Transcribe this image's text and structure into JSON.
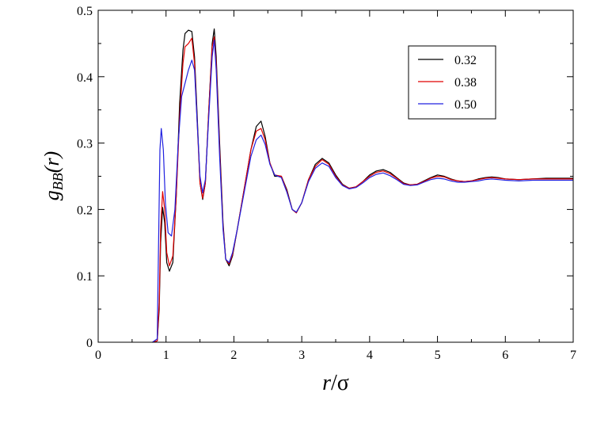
{
  "chart_data": {
    "type": "line",
    "xlabel": {
      "var": "r",
      "sep": "/",
      "unit": "σ"
    },
    "ylabel": {
      "var": "g",
      "sub": "BB",
      "arg": "(r)"
    },
    "xlim": [
      0,
      7
    ],
    "ylim": [
      0,
      0.5
    ],
    "xticks": [
      "0",
      "1",
      "2",
      "3",
      "4",
      "5",
      "6",
      "7"
    ],
    "yticks": [
      "0",
      "0.1",
      "0.2",
      "0.3",
      "0.4",
      "0.5"
    ],
    "grid": false,
    "legend_position": "top-right",
    "series": [
      {
        "name": "0.32",
        "color": "#000000",
        "points": [
          [
            0.8,
            0.0
          ],
          [
            0.87,
            0.002
          ],
          [
            0.9,
            0.05
          ],
          [
            0.92,
            0.15
          ],
          [
            0.95,
            0.203
          ],
          [
            0.98,
            0.18
          ],
          [
            1.01,
            0.12
          ],
          [
            1.05,
            0.107
          ],
          [
            1.1,
            0.12
          ],
          [
            1.15,
            0.22
          ],
          [
            1.2,
            0.36
          ],
          [
            1.25,
            0.44
          ],
          [
            1.28,
            0.465
          ],
          [
            1.33,
            0.47
          ],
          [
            1.38,
            0.468
          ],
          [
            1.42,
            0.43
          ],
          [
            1.46,
            0.34
          ],
          [
            1.5,
            0.24
          ],
          [
            1.54,
            0.215
          ],
          [
            1.58,
            0.24
          ],
          [
            1.63,
            0.35
          ],
          [
            1.68,
            0.45
          ],
          [
            1.71,
            0.472
          ],
          [
            1.74,
            0.43
          ],
          [
            1.79,
            0.3
          ],
          [
            1.84,
            0.18
          ],
          [
            1.88,
            0.125
          ],
          [
            1.93,
            0.115
          ],
          [
            1.98,
            0.13
          ],
          [
            2.05,
            0.17
          ],
          [
            2.15,
            0.23
          ],
          [
            2.25,
            0.29
          ],
          [
            2.33,
            0.325
          ],
          [
            2.4,
            0.333
          ],
          [
            2.46,
            0.31
          ],
          [
            2.53,
            0.27
          ],
          [
            2.6,
            0.25
          ],
          [
            2.7,
            0.25
          ],
          [
            2.78,
            0.23
          ],
          [
            2.86,
            0.2
          ],
          [
            2.92,
            0.195
          ],
          [
            3.0,
            0.21
          ],
          [
            3.1,
            0.245
          ],
          [
            3.2,
            0.268
          ],
          [
            3.3,
            0.277
          ],
          [
            3.4,
            0.27
          ],
          [
            3.5,
            0.252
          ],
          [
            3.6,
            0.238
          ],
          [
            3.7,
            0.232
          ],
          [
            3.8,
            0.234
          ],
          [
            3.9,
            0.242
          ],
          [
            4.0,
            0.252
          ],
          [
            4.1,
            0.258
          ],
          [
            4.2,
            0.26
          ],
          [
            4.3,
            0.256
          ],
          [
            4.4,
            0.248
          ],
          [
            4.5,
            0.24
          ],
          [
            4.6,
            0.237
          ],
          [
            4.7,
            0.238
          ],
          [
            4.8,
            0.243
          ],
          [
            4.9,
            0.248
          ],
          [
            5.0,
            0.252
          ],
          [
            5.1,
            0.25
          ],
          [
            5.2,
            0.246
          ],
          [
            5.3,
            0.243
          ],
          [
            5.4,
            0.242
          ],
          [
            5.5,
            0.243
          ],
          [
            5.6,
            0.246
          ],
          [
            5.7,
            0.248
          ],
          [
            5.8,
            0.249
          ],
          [
            5.9,
            0.248
          ],
          [
            6.0,
            0.246
          ],
          [
            6.2,
            0.245
          ],
          [
            6.4,
            0.246
          ],
          [
            6.6,
            0.247
          ],
          [
            6.8,
            0.247
          ],
          [
            7.0,
            0.247
          ]
        ]
      },
      {
        "name": "0.38",
        "color": "#e00000",
        "points": [
          [
            0.8,
            0.0
          ],
          [
            0.87,
            0.002
          ],
          [
            0.9,
            0.06
          ],
          [
            0.92,
            0.17
          ],
          [
            0.95,
            0.227
          ],
          [
            0.98,
            0.2
          ],
          [
            1.01,
            0.135
          ],
          [
            1.05,
            0.115
          ],
          [
            1.1,
            0.13
          ],
          [
            1.15,
            0.22
          ],
          [
            1.2,
            0.34
          ],
          [
            1.25,
            0.42
          ],
          [
            1.28,
            0.445
          ],
          [
            1.33,
            0.45
          ],
          [
            1.38,
            0.458
          ],
          [
            1.42,
            0.42
          ],
          [
            1.46,
            0.33
          ],
          [
            1.5,
            0.24
          ],
          [
            1.54,
            0.217
          ],
          [
            1.58,
            0.24
          ],
          [
            1.63,
            0.35
          ],
          [
            1.68,
            0.445
          ],
          [
            1.71,
            0.46
          ],
          [
            1.74,
            0.42
          ],
          [
            1.79,
            0.29
          ],
          [
            1.84,
            0.175
          ],
          [
            1.88,
            0.125
          ],
          [
            1.93,
            0.118
          ],
          [
            1.98,
            0.132
          ],
          [
            2.05,
            0.17
          ],
          [
            2.15,
            0.23
          ],
          [
            2.25,
            0.29
          ],
          [
            2.33,
            0.318
          ],
          [
            2.4,
            0.322
          ],
          [
            2.46,
            0.305
          ],
          [
            2.53,
            0.27
          ],
          [
            2.6,
            0.252
          ],
          [
            2.7,
            0.25
          ],
          [
            2.78,
            0.228
          ],
          [
            2.86,
            0.2
          ],
          [
            2.92,
            0.195
          ],
          [
            3.0,
            0.21
          ],
          [
            3.1,
            0.245
          ],
          [
            3.2,
            0.265
          ],
          [
            3.3,
            0.275
          ],
          [
            3.4,
            0.268
          ],
          [
            3.5,
            0.25
          ],
          [
            3.6,
            0.237
          ],
          [
            3.7,
            0.232
          ],
          [
            3.8,
            0.234
          ],
          [
            3.9,
            0.242
          ],
          [
            4.0,
            0.25
          ],
          [
            4.1,
            0.256
          ],
          [
            4.2,
            0.258
          ],
          [
            4.3,
            0.254
          ],
          [
            4.4,
            0.247
          ],
          [
            4.5,
            0.239
          ],
          [
            4.6,
            0.237
          ],
          [
            4.7,
            0.238
          ],
          [
            4.8,
            0.242
          ],
          [
            4.9,
            0.247
          ],
          [
            5.0,
            0.25
          ],
          [
            5.1,
            0.249
          ],
          [
            5.2,
            0.245
          ],
          [
            5.3,
            0.243
          ],
          [
            5.4,
            0.242
          ],
          [
            5.5,
            0.243
          ],
          [
            5.6,
            0.245
          ],
          [
            5.7,
            0.247
          ],
          [
            5.8,
            0.248
          ],
          [
            5.9,
            0.247
          ],
          [
            6.0,
            0.246
          ],
          [
            6.2,
            0.245
          ],
          [
            6.4,
            0.246
          ],
          [
            6.6,
            0.246
          ],
          [
            6.8,
            0.246
          ],
          [
            7.0,
            0.246
          ]
        ]
      },
      {
        "name": "0.50",
        "color": "#2020e0",
        "points": [
          [
            0.8,
            0.0
          ],
          [
            0.87,
            0.005
          ],
          [
            0.89,
            0.15
          ],
          [
            0.91,
            0.29
          ],
          [
            0.93,
            0.322
          ],
          [
            0.96,
            0.29
          ],
          [
            0.99,
            0.21
          ],
          [
            1.03,
            0.165
          ],
          [
            1.08,
            0.16
          ],
          [
            1.13,
            0.2
          ],
          [
            1.18,
            0.3
          ],
          [
            1.23,
            0.37
          ],
          [
            1.28,
            0.39
          ],
          [
            1.33,
            0.41
          ],
          [
            1.38,
            0.425
          ],
          [
            1.42,
            0.41
          ],
          [
            1.46,
            0.33
          ],
          [
            1.5,
            0.25
          ],
          [
            1.54,
            0.225
          ],
          [
            1.58,
            0.245
          ],
          [
            1.63,
            0.34
          ],
          [
            1.68,
            0.43
          ],
          [
            1.71,
            0.455
          ],
          [
            1.74,
            0.41
          ],
          [
            1.79,
            0.28
          ],
          [
            1.84,
            0.17
          ],
          [
            1.88,
            0.125
          ],
          [
            1.93,
            0.12
          ],
          [
            1.98,
            0.135
          ],
          [
            2.05,
            0.17
          ],
          [
            2.15,
            0.225
          ],
          [
            2.25,
            0.28
          ],
          [
            2.33,
            0.305
          ],
          [
            2.4,
            0.312
          ],
          [
            2.46,
            0.298
          ],
          [
            2.53,
            0.268
          ],
          [
            2.6,
            0.252
          ],
          [
            2.7,
            0.248
          ],
          [
            2.78,
            0.226
          ],
          [
            2.86,
            0.2
          ],
          [
            2.92,
            0.196
          ],
          [
            3.0,
            0.21
          ],
          [
            3.1,
            0.242
          ],
          [
            3.2,
            0.262
          ],
          [
            3.3,
            0.27
          ],
          [
            3.4,
            0.265
          ],
          [
            3.5,
            0.248
          ],
          [
            3.6,
            0.236
          ],
          [
            3.7,
            0.231
          ],
          [
            3.8,
            0.233
          ],
          [
            3.9,
            0.24
          ],
          [
            4.0,
            0.248
          ],
          [
            4.1,
            0.253
          ],
          [
            4.2,
            0.255
          ],
          [
            4.3,
            0.251
          ],
          [
            4.4,
            0.245
          ],
          [
            4.5,
            0.238
          ],
          [
            4.6,
            0.236
          ],
          [
            4.7,
            0.237
          ],
          [
            4.8,
            0.241
          ],
          [
            4.9,
            0.245
          ],
          [
            5.0,
            0.247
          ],
          [
            5.1,
            0.246
          ],
          [
            5.2,
            0.243
          ],
          [
            5.3,
            0.241
          ],
          [
            5.4,
            0.241
          ],
          [
            5.5,
            0.242
          ],
          [
            5.6,
            0.243
          ],
          [
            5.7,
            0.245
          ],
          [
            5.8,
            0.246
          ],
          [
            5.9,
            0.245
          ],
          [
            6.0,
            0.244
          ],
          [
            6.2,
            0.243
          ],
          [
            6.4,
            0.244
          ],
          [
            6.6,
            0.244
          ],
          [
            6.8,
            0.244
          ],
          [
            7.0,
            0.244
          ]
        ]
      }
    ]
  }
}
